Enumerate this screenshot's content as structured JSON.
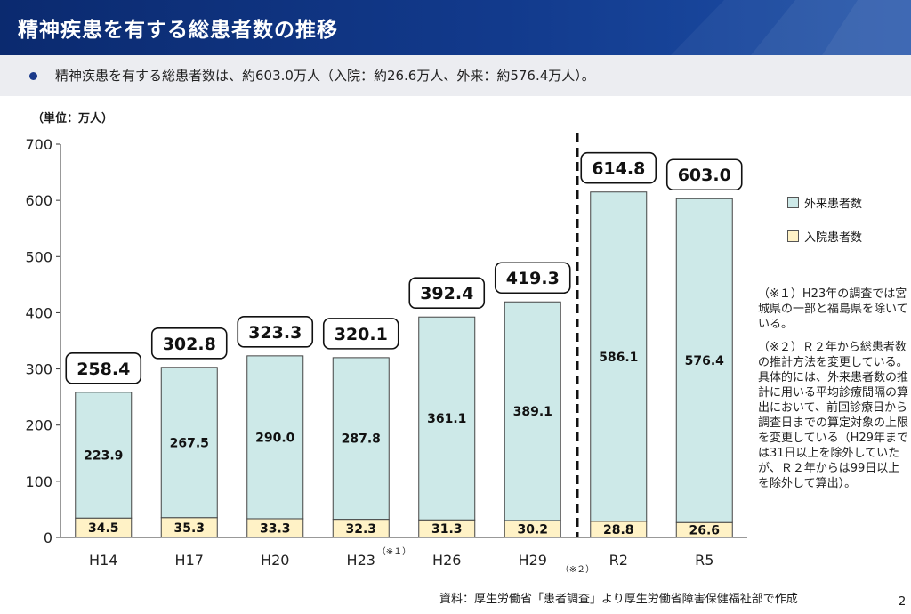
{
  "header": {
    "title": "精神疾患を有する総患者数の推移"
  },
  "summary": {
    "text": "精神疾患を有する総患者数は、約603.0万人（入院：約26.6万人、外来：約576.4万人）。"
  },
  "chart_data": {
    "type": "bar",
    "stacked": true,
    "unit_label": "（単位：万人）",
    "categories": [
      "H14",
      "H17",
      "H20",
      "H23",
      "H26",
      "H29",
      "R2",
      "R5"
    ],
    "category_notes": {
      "H23": "（※１）"
    },
    "divider_note": "（※２）",
    "divider_between": [
      "H29",
      "R2"
    ],
    "series": [
      {
        "name": "入院患者数",
        "values": [
          34.5,
          35.3,
          33.3,
          32.3,
          31.3,
          30.2,
          28.8,
          26.6
        ],
        "color": "#fff2c6"
      },
      {
        "name": "外来患者数",
        "values": [
          223.9,
          267.5,
          290.0,
          287.8,
          361.1,
          389.1,
          586.1,
          576.4
        ],
        "color": "#cde9e8"
      }
    ],
    "totals": [
      "258.4",
      "302.8",
      "323.3",
      "320.1",
      "392.4",
      "419.3",
      "614.8",
      "603.0"
    ],
    "inpatient_labels": [
      "34.5",
      "35.3",
      "33.3",
      "32.3",
      "31.3",
      "30.2",
      "28.8",
      "26.6"
    ],
    "outpatient_labels": [
      "223.9",
      "267.5",
      "290.0",
      "287.8",
      "361.1",
      "389.1",
      "586.1",
      "576.4"
    ],
    "ylim": [
      0,
      700
    ],
    "yticks": [
      "0",
      "100",
      "200",
      "300",
      "400",
      "500",
      "600",
      "700"
    ],
    "legend_position": "right",
    "grid": false
  },
  "legend": {
    "outpatient": "外来患者数",
    "inpatient": "入院患者数"
  },
  "notes": {
    "note1": "（※１）H23年の調査では宮城県の一部と福島県を除いている。",
    "note2": "（※２）Ｒ２年から総患者数の推計方法を変更している。具体的には、外来患者数の推計に用いる平均診療間隔の算出において、前回診療日から調査日までの算定対象の上限を変更している（H29年までは31日以上を除外していたが、Ｒ２年からは99日以上を除外して算出）。"
  },
  "source": "資料：厚生労働省「患者調査」より厚生労働省障害保健福祉部で作成",
  "page_number": "2"
}
